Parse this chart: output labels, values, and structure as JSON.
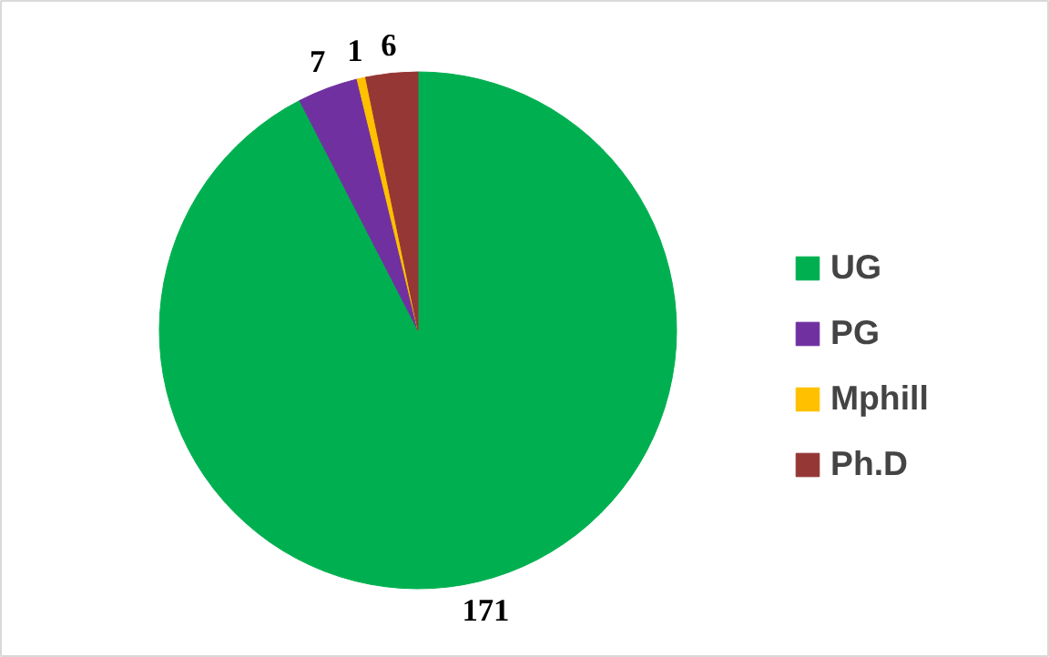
{
  "chart_data": {
    "type": "pie",
    "categories": [
      "UG",
      "PG",
      "Mphill",
      "Ph.D"
    ],
    "values": [
      171,
      7,
      1,
      6
    ],
    "colors": [
      "#00b050",
      "#7030a0",
      "#ffc000",
      "#953735"
    ],
    "data_labels": true,
    "legend": "right"
  }
}
